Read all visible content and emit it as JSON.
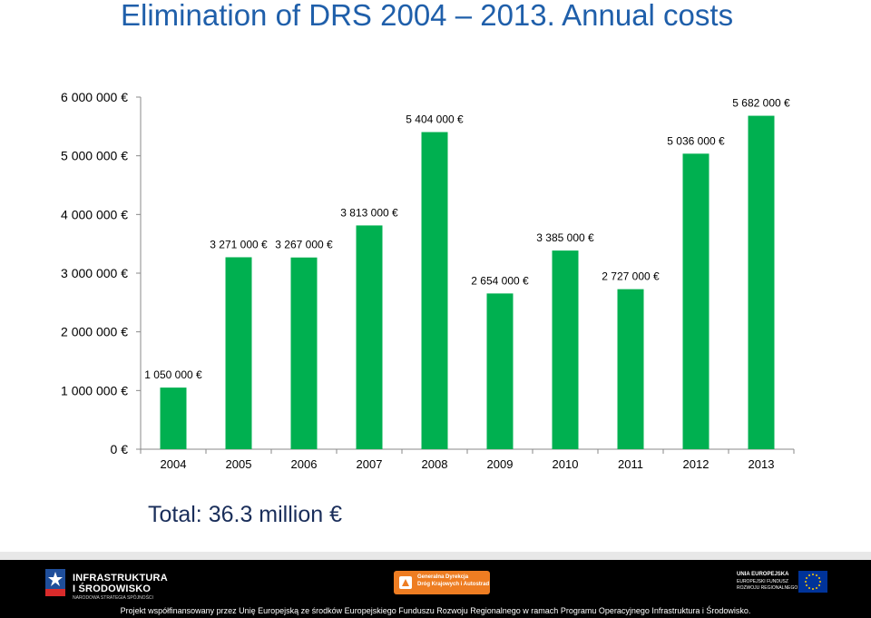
{
  "title": "Elimination of DRS 2004 – 2013. Annual costs",
  "chart_data": {
    "type": "bar",
    "title": "Elimination of DRS 2004 – 2013. Annual costs",
    "categories": [
      "2004",
      "2005",
      "2006",
      "2007",
      "2008",
      "2009",
      "2010",
      "2011",
      "2012",
      "2013"
    ],
    "values": [
      1050000,
      3271000,
      3267000,
      3813000,
      5404000,
      2654000,
      3385000,
      2727000,
      5036000,
      5682000
    ],
    "data_labels": [
      "1 050 000 €",
      "3 271 000 €",
      "3 267 000 €",
      "3 813 000 €",
      "5 404 000 €",
      "2 654 000 €",
      "3 385 000 €",
      "2 727 000 €",
      "5 036 000 €",
      "5 682 000 €"
    ],
    "y_ticks": [
      0,
      1000000,
      2000000,
      3000000,
      4000000,
      5000000,
      6000000
    ],
    "y_tick_labels": [
      "0 €",
      "1 000 000 €",
      "2 000 000 €",
      "3 000 000 €",
      "4 000 000 €",
      "5 000 000 €",
      "6 000 000 €"
    ],
    "ylim": [
      0,
      6000000
    ],
    "xlabel": "",
    "ylabel": "",
    "currency": "EUR",
    "grid": false,
    "bar_color": "#00b050"
  },
  "total_label": "Total: 36.3 million €",
  "footer": {
    "left_logo": {
      "line1": "INFRASTRUKTURA",
      "line2": "I ŚRODOWISKO",
      "line3": "NARODOWA STRATEGIA SPÓJNOŚCI"
    },
    "center_logo": {
      "line1": "Generalna Dyrekcja",
      "line2": "Dróg Krajowych i Autostrad"
    },
    "right_logo": {
      "line1": "UNIA EUROPEJSKA",
      "line2": "EUROPEJSKI FUNDUSZ",
      "line3": "ROZWOJU REGIONALNEGO"
    },
    "footnote": "Projekt współfinansowany przez Unię Europejską ze środków Europejskiego Funduszu Rozwoju Regionalnego w ramach Programu Operacyjnego Infrastruktura i Środowisko."
  }
}
